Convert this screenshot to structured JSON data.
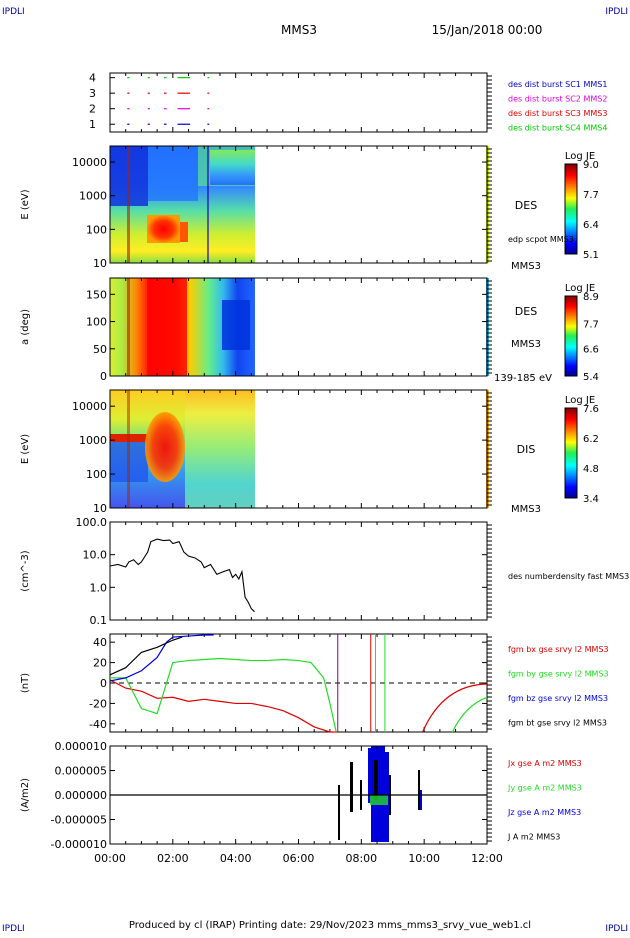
{
  "header": {
    "corner_tl": "IPDLI",
    "corner_tr": "IPDLI",
    "title": "MMS3",
    "date": "15/Jan/2018 00:00"
  },
  "footer": {
    "text": "Produced by cl (IRAP)   Printing date: 29/Nov/2023   mms_mms3_srvy_vue_web1.cl",
    "corner_bl": "IPDLI",
    "corner_br": "IPDLI"
  },
  "colors": {
    "c1": "#0000cc",
    "c2": "#dd00dd",
    "c3": "#dd0000",
    "c4": "#00cc00",
    "bx": "#dd0000",
    "by": "#22dd22",
    "bz": "#0000dd",
    "bt": "#000000"
  },
  "chart_data": [
    {
      "type": "timeline",
      "panel": "availability",
      "yticks": [
        "1",
        "2",
        "3",
        "4"
      ],
      "legend": [
        {
          "name": "des dist burst SC1 MMS1",
          "color": "#0000cc"
        },
        {
          "name": "des dist burst SC2 MMS2",
          "color": "#dd00dd"
        },
        {
          "name": "des dist burst SC3 MMS3",
          "color": "#dd0000"
        },
        {
          "name": "des dist burst SC4 MMS4",
          "color": "#00cc00"
        }
      ],
      "segments": [
        {
          "sc": 4,
          "x": [
            0.55,
            0.62
          ]
        },
        {
          "sc": 4,
          "x": [
            1.2,
            1.27
          ]
        },
        {
          "sc": 4,
          "x": [
            1.72,
            1.8
          ]
        },
        {
          "sc": 4,
          "x": [
            2.15,
            2.55
          ]
        },
        {
          "sc": 4,
          "x": [
            3.1,
            3.16
          ]
        },
        {
          "sc": 3,
          "x": [
            0.55,
            0.62
          ]
        },
        {
          "sc": 3,
          "x": [
            1.2,
            1.27
          ]
        },
        {
          "sc": 3,
          "x": [
            1.72,
            1.8
          ]
        },
        {
          "sc": 3,
          "x": [
            2.15,
            2.55
          ]
        },
        {
          "sc": 3,
          "x": [
            3.1,
            3.16
          ]
        },
        {
          "sc": 2,
          "x": [
            0.55,
            0.62
          ]
        },
        {
          "sc": 2,
          "x": [
            1.2,
            1.27
          ]
        },
        {
          "sc": 2,
          "x": [
            1.72,
            1.8
          ]
        },
        {
          "sc": 2,
          "x": [
            2.15,
            2.55
          ]
        },
        {
          "sc": 2,
          "x": [
            3.1,
            3.16
          ]
        },
        {
          "sc": 1,
          "x": [
            0.55,
            0.62
          ]
        },
        {
          "sc": 1,
          "x": [
            1.2,
            1.27
          ]
        },
        {
          "sc": 1,
          "x": [
            1.72,
            1.8
          ]
        },
        {
          "sc": 1,
          "x": [
            2.15,
            2.55
          ]
        },
        {
          "sc": 1,
          "x": [
            3.1,
            3.16
          ]
        }
      ]
    },
    {
      "type": "heatmap",
      "panel": "des_energy",
      "ylabel": "E (eV)",
      "yscale": "log",
      "ylim": [
        10,
        30000
      ],
      "yticks": [
        "10",
        "100",
        "1000",
        "10000"
      ],
      "label": "DES",
      "sublabel": "MMS3",
      "overlay": "edp scpot MMS3",
      "colorbar": {
        "title": "Log JE",
        "ticks": [
          "5.1",
          "6.4",
          "7.7",
          "9.0"
        ],
        "range": [
          5.1,
          9.0
        ]
      },
      "data_xlim": [
        0,
        4.65
      ]
    },
    {
      "type": "heatmap",
      "panel": "des_pitch",
      "ylabel": "a (deg)",
      "ylim": [
        0,
        180
      ],
      "yticks": [
        "0",
        "50",
        "100",
        "150"
      ],
      "label": "DES",
      "sublabel": "MMS3",
      "energy_band": "139-185 eV",
      "colorbar": {
        "title": "Log JE",
        "ticks": [
          "5.4",
          "6.6",
          "7.7",
          "8.9"
        ],
        "range": [
          5.4,
          8.9
        ]
      },
      "data_xlim": [
        0,
        4.65
      ]
    },
    {
      "type": "heatmap",
      "panel": "dis_energy",
      "ylabel": "E (eV)",
      "yscale": "log",
      "ylim": [
        10,
        30000
      ],
      "yticks": [
        "10",
        "100",
        "1000",
        "10000"
      ],
      "label": "DIS",
      "sublabel": "MMS3",
      "colorbar": {
        "title": "Log JE",
        "ticks": [
          "3.4",
          "4.8",
          "6.2",
          "7.6"
        ],
        "range": [
          3.4,
          7.6
        ]
      },
      "data_xlim": [
        0,
        4.65
      ]
    },
    {
      "type": "line",
      "panel": "density",
      "ylabel": "(cm^-3)",
      "yscale": "log",
      "ylim": [
        0.1,
        100
      ],
      "yticks": [
        "0.1",
        "1.0",
        "10.0",
        "100.0"
      ],
      "series": [
        {
          "name": "des numberdensity fast MMS3",
          "color": "#000000",
          "x": [
            0,
            0.25,
            0.5,
            0.6,
            0.75,
            0.9,
            1.0,
            1.2,
            1.3,
            1.5,
            1.7,
            1.9,
            2.0,
            2.2,
            2.35,
            2.5,
            2.7,
            2.9,
            3.0,
            3.2,
            3.4,
            3.6,
            3.8,
            3.9,
            4.0,
            4.1,
            4.2,
            4.3,
            4.4,
            4.5,
            4.6
          ],
          "y": [
            4.5,
            5.0,
            4.2,
            6.0,
            7.0,
            5.0,
            6.0,
            12.0,
            25.0,
            30.0,
            27.0,
            28.0,
            22.0,
            25.0,
            12.0,
            9.0,
            8.0,
            6.0,
            4.0,
            5.0,
            2.5,
            3.0,
            3.5,
            2.0,
            2.5,
            1.8,
            3.0,
            0.5,
            0.35,
            0.22,
            0.18
          ]
        }
      ]
    },
    {
      "type": "line",
      "panel": "fgm",
      "ylabel": "(nT)",
      "ylim": [
        -48,
        48
      ],
      "yticks": [
        "-40",
        "-20",
        "0",
        "20",
        "40"
      ],
      "zero_line": true,
      "series": [
        {
          "name": "fgm bx gse srvy l2 MMS3",
          "color": "#dd0000",
          "x": [
            0,
            0.5,
            1.0,
            1.5,
            2.0,
            2.5,
            3.0,
            3.5,
            4.0,
            4.5,
            5.0,
            5.5,
            6.0,
            6.5,
            7.0,
            7.25
          ],
          "y": [
            3,
            -5,
            -8,
            -15,
            -14,
            -18,
            -16,
            -18,
            -20,
            -20,
            -23,
            -27,
            -34,
            -43,
            -55,
            -60
          ]
        },
        {
          "name": "fgm by gse srvy l2 MMS3",
          "color": "#22dd22",
          "x": [
            0,
            0.5,
            1.0,
            1.5,
            2.0,
            2.5,
            3.0,
            3.5,
            4.0,
            4.5,
            5.0,
            5.5,
            6.0,
            6.4,
            6.8,
            7.0,
            7.2
          ],
          "y": [
            5,
            5,
            -25,
            -30,
            20,
            22,
            23,
            24,
            23,
            22,
            22,
            23,
            22,
            20,
            5,
            -20,
            -55
          ]
        },
        {
          "name": "fgm bz gse srvy l2 MMS3",
          "color": "#0000dd",
          "x": [
            0,
            0.5,
            1.0,
            1.5,
            1.8,
            2.0,
            2.5,
            3.0,
            3.3
          ],
          "y": [
            2,
            5,
            12,
            25,
            40,
            45,
            46,
            47,
            47
          ]
        },
        {
          "name": "fgm bt gse srvy l2 MMS3",
          "color": "#000000",
          "x": [
            0,
            0.5,
            1.0,
            1.5,
            2.0,
            2.3
          ],
          "y": [
            8,
            15,
            30,
            35,
            42,
            45
          ]
        }
      ]
    },
    {
      "type": "line",
      "panel": "current",
      "ylabel": "(A/m2)",
      "ylim": [
        -1e-05,
        1e-05
      ],
      "yticks": [
        "-0.000010",
        "-0.000005",
        "0.000000",
        "0.000005",
        "0.000010"
      ],
      "xticks": [
        "00:00",
        "02:00",
        "04:00",
        "06:00",
        "08:00",
        "10:00",
        "12:00"
      ],
      "series": [
        {
          "name": "Jx gse A m2 MMS3",
          "color": "#dd0000"
        },
        {
          "name": "Jy gse A m2 MMS3",
          "color": "#22dd22"
        },
        {
          "name": "Jz gse A m2 MMS3",
          "color": "#0000dd"
        },
        {
          "name": "J A m2 MMS3",
          "color": "#000000"
        }
      ]
    }
  ]
}
